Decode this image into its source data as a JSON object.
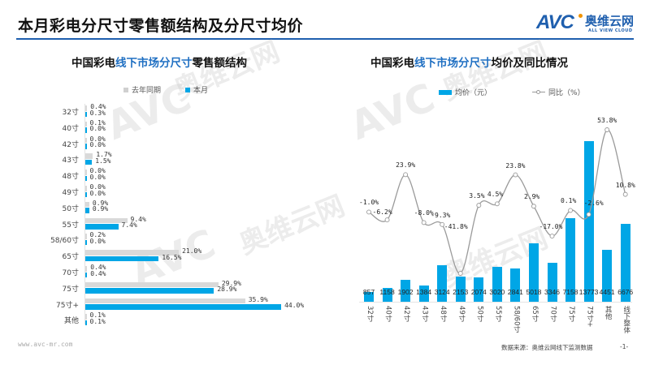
{
  "header": {
    "title": "本月彩电分尺寸零售额结构及分尺寸均价",
    "logo_mark": "AVC",
    "logo_cn": "奥维云网",
    "logo_en": "ALL VIEW CLOUD"
  },
  "colors": {
    "accent": "#1f5fae",
    "bar_current": "#00a6e6",
    "bar_last_year": "#d9d9d9",
    "line": "#999999"
  },
  "left_chart": {
    "title_pre": "中国彩电",
    "title_hl": "线下市场分尺寸",
    "title_post": "零售额结构",
    "legend": [
      "去年同期",
      "本月"
    ]
  },
  "right_chart": {
    "title_pre": "中国彩电",
    "title_hl": "线下市场分尺寸",
    "title_post": "均价及同比情况",
    "legend": [
      "均价（元）",
      "同比（%）"
    ]
  },
  "chart_data": [
    {
      "type": "bar",
      "orientation": "horizontal",
      "title": "中国彩电线下市场分尺寸零售额结构",
      "categories": [
        "32寸",
        "40寸",
        "42寸",
        "43寸",
        "48寸",
        "49寸",
        "50寸",
        "55寸",
        "58/60寸",
        "65寸",
        "70寸",
        "75寸",
        "75寸+",
        "其他"
      ],
      "series": [
        {
          "name": "去年同期",
          "values": [
            0.4,
            0.1,
            0.0,
            1.7,
            0.0,
            0.0,
            0.9,
            9.4,
            0.2,
            21.0,
            0.4,
            29.9,
            35.9,
            0.1
          ],
          "labels": [
            "0.4%",
            "0.1%",
            "0.0%",
            "1.7%",
            "0.0%",
            "0.0%",
            "0.9%",
            "9.4%",
            "0.2%",
            "21.0%",
            "0.4%",
            "29.9%",
            "35.9%",
            "0.1%"
          ]
        },
        {
          "name": "本月",
          "values": [
            0.3,
            0.0,
            0.0,
            1.5,
            0.0,
            0.0,
            0.9,
            7.4,
            0.0,
            16.5,
            0.4,
            28.9,
            44.0,
            0.1
          ],
          "labels": [
            "0.3%",
            "0.0%",
            "0.0%",
            "1.5%",
            "0.0%",
            "0.0%",
            "0.9%",
            "7.4%",
            "0.0%",
            "16.5%",
            "0.4%",
            "28.9%",
            "44.0%",
            "0.1%"
          ]
        }
      ],
      "unit": "%",
      "legend_position": "top",
      "grid": false
    },
    {
      "type": "bar+line",
      "title": "中国彩电线下市场分尺寸均价及同比情况",
      "categories": [
        "32寸",
        "40寸",
        "42寸",
        "43寸",
        "48寸",
        "49寸",
        "50寸",
        "55寸",
        "58/60寸",
        "65寸",
        "70寸",
        "75寸",
        "75寸+",
        "其他",
        "线下整体"
      ],
      "series": [
        {
          "name": "均价（元）",
          "type": "bar",
          "values": [
            857,
            1158,
            1902,
            1384,
            3124,
            2153,
            2074,
            3020,
            2841,
            5018,
            3346,
            7158,
            13773,
            4451,
            6676
          ],
          "labels": [
            "857",
            "1158",
            "1902",
            "1384",
            "3124",
            "2153",
            "2074",
            "3020",
            "2841",
            "5018",
            "3346",
            "7158",
            "13773",
            "4451",
            "6676"
          ]
        },
        {
          "name": "同比（%）",
          "type": "line",
          "values": [
            -1.0,
            -6.2,
            23.9,
            -8.0,
            -9.3,
            -41.8,
            3.5,
            4.5,
            23.8,
            2.9,
            -17.0,
            0.1,
            -2.6,
            53.8,
            10.8
          ],
          "labels": [
            "-1.0%",
            "-6.2%",
            "23.9%",
            "-8.0%",
            "-9.3%",
            "-41.8%",
            "3.5%",
            "4.5%",
            "23.8%",
            "2.9%",
            "-17.0%",
            "0.1%",
            "-2.6%",
            "53.8%",
            "10.8%"
          ]
        }
      ],
      "legend_position": "top",
      "grid": false
    }
  ],
  "footer": {
    "url": "www.avc-mr.com",
    "source": "数据来源：奥维云网线下监测数据",
    "page": "-1-"
  },
  "watermark": {
    "mark": "AVC",
    "cn": "奥维云网",
    "en": "ALL VIEW CLOUD"
  }
}
